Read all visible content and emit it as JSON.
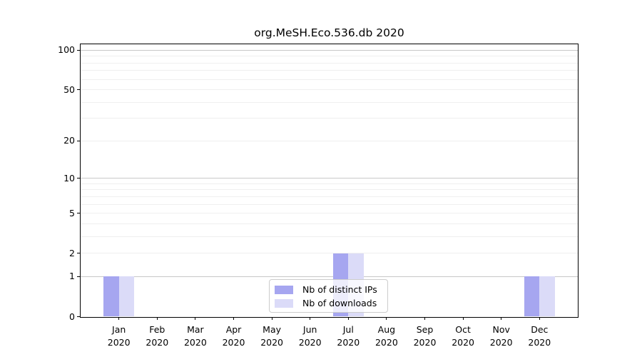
{
  "title": "org.MeSH.Eco.536.db 2020",
  "chart_data": {
    "type": "bar",
    "title": "org.MeSH.Eco.536.db 2020",
    "categories": [
      "Jan",
      "Feb",
      "Mar",
      "Apr",
      "May",
      "Jun",
      "Jul",
      "Aug",
      "Sep",
      "Oct",
      "Nov",
      "Dec"
    ],
    "category_year": "2020",
    "series": [
      {
        "name": "Nb of distinct IPs",
        "color": "#a6a6f0",
        "values": [
          1,
          0,
          0,
          0,
          0,
          0,
          2,
          0,
          0,
          0,
          0,
          1
        ]
      },
      {
        "name": "Nb of downloads",
        "color": "#dbdbf8",
        "values": [
          1,
          0,
          0,
          0,
          0,
          0,
          2,
          0,
          0,
          0,
          0,
          1
        ]
      }
    ],
    "xlabel": "",
    "ylabel": "",
    "yaxis": {
      "scale": "log1p",
      "tick_values": [
        0,
        1,
        2,
        5,
        10,
        20,
        50,
        100
      ],
      "major_gridlines": [
        1,
        10,
        100
      ],
      "minor_gridlines": [
        2,
        3,
        4,
        5,
        6,
        7,
        8,
        9,
        20,
        30,
        40,
        50,
        60,
        70,
        80,
        90
      ],
      "ylim": [
        0,
        111
      ]
    },
    "grid": true,
    "legend_position": "bottom-center"
  },
  "colors": {
    "major_grid": "#c8c8c8",
    "minor_grid": "#efefef",
    "spine": "#000000",
    "legend_border": "#cccccc"
  }
}
